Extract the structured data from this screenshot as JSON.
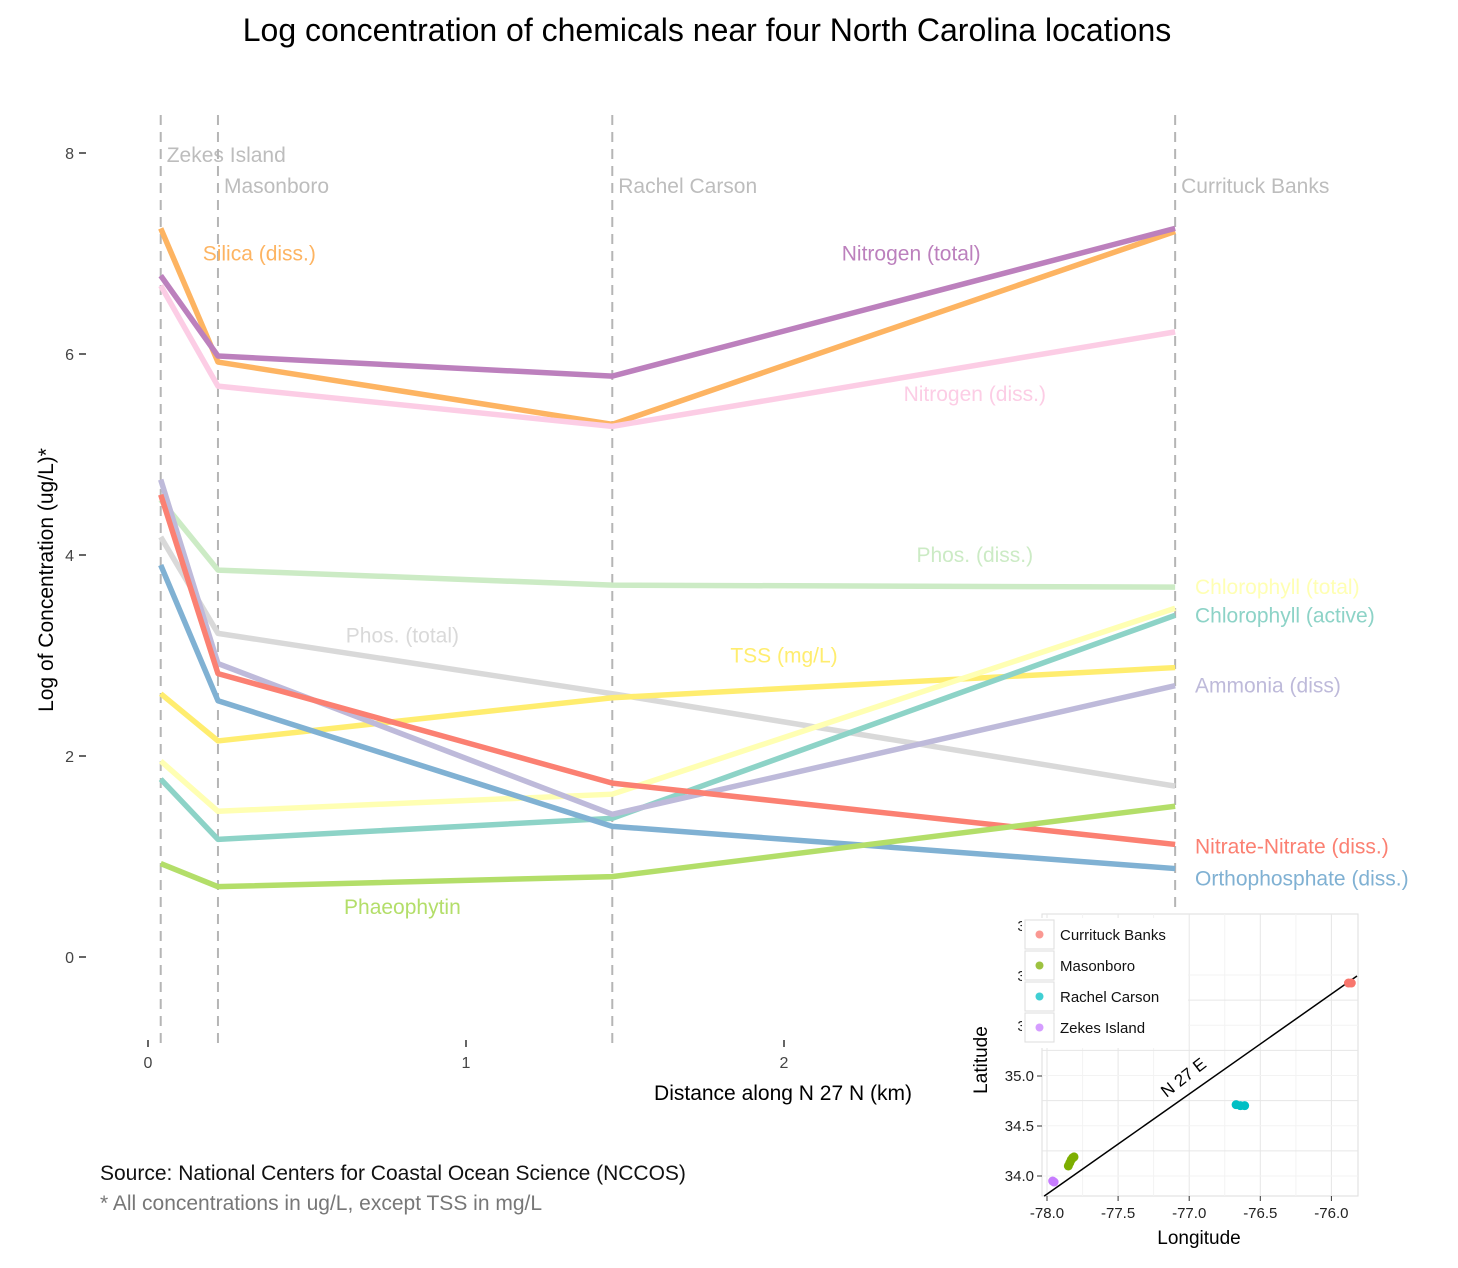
{
  "title": "Log concentration of chemicals near four North Carolina locations",
  "source": "Source: National Centers for Coastal Ocean Science (NCCOS)",
  "note": "* All concentrations in ug/L, except TSS in mg/L",
  "chart_data": [
    {
      "type": "line",
      "title": "Log concentration of chemicals near four North Carolina locations",
      "xlabel": "Distance along N 27 N (km)",
      "ylabel": "Log of Concentration (ug/L)*",
      "xlim": [
        -0.05,
        3.65
      ],
      "ylim": [
        -0.9,
        8.3
      ],
      "x_ticks": [
        "0",
        "1",
        "2"
      ],
      "y_ticks": [
        "0",
        "2",
        "4",
        "6",
        "8"
      ],
      "grid": false,
      "locations": [
        {
          "name": "Zekes Island",
          "x": 0.04
        },
        {
          "name": "Masonboro",
          "x": 0.22
        },
        {
          "name": "Rachel Carson",
          "x": 1.46
        },
        {
          "name": "Currituck Banks",
          "x": 3.23
        }
      ],
      "series": [
        {
          "name": "Silica (diss.)",
          "color": "#fdb462",
          "label_x": 0.35,
          "label_y": 7.0,
          "values": [
            7.25,
            5.92,
            5.3,
            7.22
          ]
        },
        {
          "name": "Nitrogen (total)",
          "color": "#bc80bd",
          "label_x": 2.4,
          "label_y": 7.0,
          "values": [
            6.78,
            5.98,
            5.78,
            7.25
          ]
        },
        {
          "name": "Nitrogen (diss.)",
          "color": "#fccde5",
          "label_x": 2.6,
          "label_y": 5.6,
          "values": [
            6.68,
            5.68,
            5.28,
            6.22
          ]
        },
        {
          "name": "Phos. (diss.)",
          "color": "#ccebc5",
          "label_x": 2.6,
          "label_y": 4.0,
          "values": [
            4.55,
            3.85,
            3.7,
            3.68
          ]
        },
        {
          "name": "Phos. (total)",
          "color": "#d9d9d9",
          "label_x": 0.8,
          "label_y": 3.2,
          "values": [
            4.18,
            3.22,
            2.62,
            1.7
          ]
        },
        {
          "name": "TSS (mg/L)",
          "color": "#ffed6f",
          "label_x": 2.0,
          "label_y": 3.0,
          "values": [
            2.62,
            2.15,
            2.58,
            2.88
          ]
        },
        {
          "name": "Chlorophyll (total)",
          "color": "#ffffb3",
          "label_x": 3.3,
          "label_y": 3.68,
          "values": [
            1.95,
            1.45,
            1.62,
            3.47
          ]
        },
        {
          "name": "Chlorophyll (active)",
          "color": "#8dd3c7",
          "label_x": 3.3,
          "label_y": 3.4,
          "values": [
            1.77,
            1.17,
            1.38,
            3.4
          ]
        },
        {
          "name": "Ammonia (diss)",
          "color": "#bebada",
          "label_x": 3.3,
          "label_y": 2.7,
          "values": [
            4.75,
            2.92,
            1.42,
            2.7
          ]
        },
        {
          "name": "Nitrate-Nitrate (diss.)",
          "color": "#fb8072",
          "label_x": 3.3,
          "label_y": 1.1,
          "values": [
            4.6,
            2.82,
            1.73,
            1.12
          ]
        },
        {
          "name": "Orthophosphate (diss.)",
          "color": "#80b1d3",
          "label_x": 3.3,
          "label_y": 0.78,
          "values": [
            3.9,
            2.55,
            1.3,
            0.88
          ]
        },
        {
          "name": "Phaeophytin",
          "color": "#b3de69",
          "label_x": 0.8,
          "label_y": 0.5,
          "values": [
            0.93,
            0.7,
            0.8,
            1.5
          ]
        }
      ]
    },
    {
      "type": "scatter",
      "xlabel": "Longitude",
      "ylabel": "Latitude",
      "xlim": [
        -78.02,
        -75.82
      ],
      "ylim": [
        33.82,
        36.0
      ],
      "x_ticks": [
        "-78.0",
        "-77.5",
        "-77.0",
        "-76.5",
        "-76.0"
      ],
      "y_ticks": [
        "34.0",
        "34.5",
        "35.0",
        "35",
        "36",
        "36"
      ],
      "grid": true,
      "legend_position": "top-left",
      "annotation": "N 27 E",
      "line": {
        "x": [
          -78.02,
          -75.82
        ],
        "y": [
          33.8,
          35.99
        ]
      },
      "series": [
        {
          "name": "Currituck Banks",
          "color": "#f8766d",
          "points": [
            [
              -75.88,
              35.92
            ],
            [
              -75.86,
              35.92
            ]
          ]
        },
        {
          "name": "Masonboro",
          "color": "#7cae00",
          "points": [
            [
              -77.85,
              34.1
            ],
            [
              -77.84,
              34.13
            ],
            [
              -77.83,
              34.16
            ],
            [
              -77.82,
              34.18
            ],
            [
              -77.81,
              34.19
            ]
          ]
        },
        {
          "name": "Rachel Carson",
          "color": "#00bfc4",
          "points": [
            [
              -76.67,
              34.71
            ],
            [
              -76.64,
              34.7
            ],
            [
              -76.61,
              34.7
            ]
          ]
        },
        {
          "name": "Zekes Island",
          "color": "#c77cff",
          "points": [
            [
              -77.96,
              33.95
            ],
            [
              -77.95,
              33.94
            ]
          ]
        }
      ]
    }
  ]
}
